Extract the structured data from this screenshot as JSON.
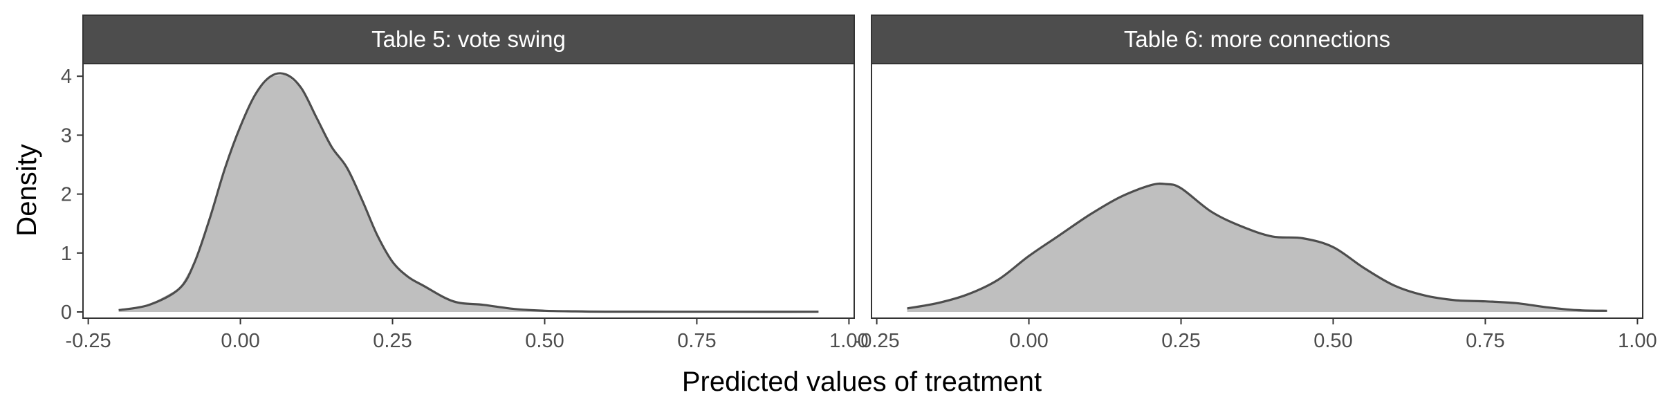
{
  "chart_data": {
    "type": "area",
    "xlabel": "Predicted values of treatment",
    "ylabel": "Density",
    "xlim": [
      -0.25,
      1.0
    ],
    "ylim": [
      0,
      4.2
    ],
    "x_ticks": [
      "-0.25",
      "0.00",
      "0.25",
      "0.50",
      "0.75",
      "1.00"
    ],
    "y_ticks": [
      "0",
      "1",
      "2",
      "3",
      "4"
    ],
    "grid": false,
    "colors": {
      "fill": "#bfbfbf",
      "line": "#4d4d4d",
      "strip": "#4d4d4d",
      "frame": "#333333"
    },
    "panels": [
      {
        "title": "Table 5: vote swing",
        "x": [
          -0.2,
          -0.15,
          -0.1,
          -0.075,
          -0.05,
          -0.025,
          0.0,
          0.025,
          0.05,
          0.075,
          0.1,
          0.125,
          0.15,
          0.175,
          0.2,
          0.225,
          0.25,
          0.275,
          0.3,
          0.35,
          0.4,
          0.45,
          0.5,
          0.55,
          0.6,
          0.7,
          0.8,
          0.95
        ],
        "y": [
          0.03,
          0.12,
          0.4,
          0.85,
          1.6,
          2.45,
          3.15,
          3.7,
          4.0,
          4.03,
          3.8,
          3.3,
          2.8,
          2.45,
          1.9,
          1.3,
          0.85,
          0.6,
          0.45,
          0.18,
          0.12,
          0.05,
          0.02,
          0.01,
          0.005,
          0.004,
          0.003,
          0.003
        ]
      },
      {
        "title": "Table 6: more connections",
        "x": [
          -0.2,
          -0.15,
          -0.1,
          -0.05,
          0.0,
          0.05,
          0.1,
          0.15,
          0.2,
          0.225,
          0.25,
          0.3,
          0.35,
          0.4,
          0.45,
          0.5,
          0.55,
          0.6,
          0.65,
          0.7,
          0.75,
          0.8,
          0.85,
          0.9,
          0.95
        ],
        "y": [
          0.06,
          0.15,
          0.3,
          0.55,
          0.95,
          1.3,
          1.65,
          1.95,
          2.15,
          2.17,
          2.1,
          1.7,
          1.45,
          1.28,
          1.25,
          1.1,
          0.75,
          0.45,
          0.28,
          0.2,
          0.18,
          0.15,
          0.08,
          0.03,
          0.02
        ]
      }
    ]
  }
}
